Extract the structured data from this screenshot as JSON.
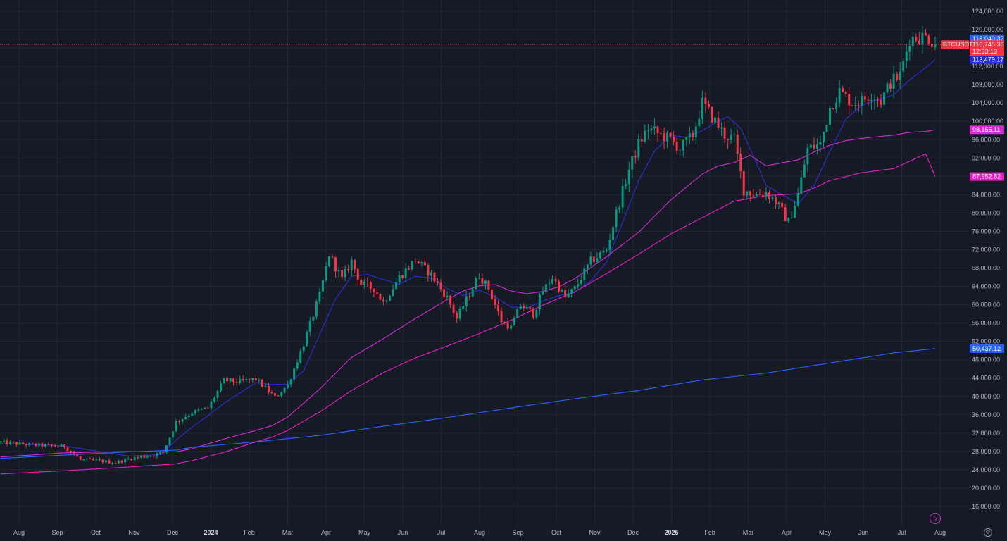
{
  "chart_data": {
    "type": "candlestick",
    "symbol": "BTCUSDT",
    "ylim": [
      12000,
      126000
    ],
    "y_ticks": [
      "124,000.00",
      "120,000.00",
      "116,000.00",
      "112,000.00",
      "108,000.00",
      "104,000.00",
      "100,000.00",
      "96,000.00",
      "92,000.00",
      "88,000.00",
      "84,000.00",
      "80,000.00",
      "76,000.00",
      "72,000.00",
      "68,000.00",
      "64,000.00",
      "60,000.00",
      "56,000.00",
      "52,000.00",
      "48,000.00",
      "44,000.00",
      "40,000.00",
      "36,000.00",
      "32,000.00",
      "28,000.00",
      "24,000.00",
      "20,000.00",
      "16,000.00"
    ],
    "x_ticks": [
      "Aug",
      "Sep",
      "Oct",
      "Nov",
      "Dec",
      "2024",
      "Feb",
      "Mar",
      "Apr",
      "May",
      "Jun",
      "Jul",
      "Aug",
      "Sep",
      "Oct",
      "Nov",
      "Dec",
      "2025",
      "Feb",
      "Mar",
      "Apr",
      "May",
      "Jun",
      "Jul",
      "Aug"
    ],
    "x_tick_bold": [
      "2024",
      "2025"
    ],
    "current_price": {
      "label": "BTCUSDT",
      "value": "116,745.36",
      "countdown": "12:33:13",
      "numeric": 116745.36,
      "color": "#f23645"
    },
    "price_labels": [
      {
        "value": "118,040.32",
        "numeric": 118040.32,
        "color": "#2962ff"
      },
      {
        "value": "113,479.17",
        "numeric": 113479.17,
        "color": "#2a2ed8"
      },
      {
        "value": "98,155.11",
        "numeric": 98155.11,
        "color": "#d62ad6"
      },
      {
        "value": "87,952.82",
        "numeric": 87952.82,
        "color": "#e91ec8"
      },
      {
        "value": "50,437.12",
        "numeric": 50437.12,
        "color": "#2962ff"
      }
    ],
    "price_anchors": [
      [
        0,
        30000
      ],
      [
        10,
        29400
      ],
      [
        20,
        29100
      ],
      [
        25,
        26200
      ],
      [
        30,
        26000
      ],
      [
        36,
        25600
      ],
      [
        41,
        26500
      ],
      [
        48,
        27200
      ],
      [
        51,
        27800
      ],
      [
        55,
        34400
      ],
      [
        60,
        36500
      ],
      [
        65,
        37500
      ],
      [
        70,
        43500
      ],
      [
        75,
        43200
      ],
      [
        80,
        43800
      ],
      [
        86,
        39800
      ],
      [
        90,
        42500
      ],
      [
        95,
        51500
      ],
      [
        100,
        62000
      ],
      [
        103,
        71000
      ],
      [
        107,
        65500
      ],
      [
        110,
        69500
      ],
      [
        113,
        64500
      ],
      [
        117,
        63500
      ],
      [
        120,
        60500
      ],
      [
        125,
        66000
      ],
      [
        130,
        69800
      ],
      [
        135,
        66500
      ],
      [
        140,
        61500
      ],
      [
        143,
        57000
      ],
      [
        147,
        62500
      ],
      [
        150,
        66500
      ],
      [
        153,
        63500
      ],
      [
        157,
        56500
      ],
      [
        160,
        55000
      ],
      [
        163,
        60000
      ],
      [
        167,
        58000
      ],
      [
        170,
        63000
      ],
      [
        173,
        66000
      ],
      [
        177,
        61500
      ],
      [
        180,
        63500
      ],
      [
        185,
        69500
      ],
      [
        190,
        72000
      ],
      [
        193,
        80000
      ],
      [
        197,
        89500
      ],
      [
        200,
        95000
      ],
      [
        203,
        98500
      ],
      [
        207,
        97000
      ],
      [
        210,
        96000
      ],
      [
        213,
        94000
      ],
      [
        217,
        97000
      ],
      [
        220,
        104000
      ],
      [
        223,
        101000
      ],
      [
        227,
        97000
      ],
      [
        230,
        96000
      ],
      [
        233,
        85000
      ],
      [
        237,
        84000
      ],
      [
        240,
        84500
      ],
      [
        243,
        82500
      ],
      [
        247,
        78000
      ],
      [
        250,
        84000
      ],
      [
        253,
        94000
      ],
      [
        257,
        95000
      ],
      [
        260,
        103000
      ],
      [
        263,
        106500
      ],
      [
        267,
        104000
      ],
      [
        270,
        104500
      ],
      [
        273,
        106000
      ],
      [
        276,
        104500
      ],
      [
        279,
        108500
      ],
      [
        282,
        110000
      ],
      [
        285,
        118000
      ],
      [
        288,
        118500
      ],
      [
        291,
        118200
      ],
      [
        293,
        116745
      ]
    ],
    "ma_anchors": {
      "ma20": [
        [
          0,
          29800
        ],
        [
          20,
          29200
        ],
        [
          30,
          28100
        ],
        [
          40,
          27000
        ],
        [
          50,
          27300
        ],
        [
          55,
          30500
        ],
        [
          60,
          33300
        ],
        [
          65,
          35800
        ],
        [
          70,
          38500
        ],
        [
          80,
          43000
        ],
        [
          85,
          42600
        ],
        [
          90,
          42700
        ],
        [
          95,
          45600
        ],
        [
          100,
          53500
        ],
        [
          105,
          61300
        ],
        [
          110,
          66200
        ],
        [
          115,
          66600
        ],
        [
          120,
          65500
        ],
        [
          125,
          64500
        ],
        [
          130,
          66200
        ],
        [
          135,
          65800
        ],
        [
          140,
          63500
        ],
        [
          145,
          62000
        ],
        [
          150,
          63200
        ],
        [
          155,
          61700
        ],
        [
          160,
          59500
        ],
        [
          165,
          59300
        ],
        [
          170,
          60800
        ],
        [
          175,
          62000
        ],
        [
          180,
          62700
        ],
        [
          185,
          65200
        ],
        [
          190,
          69300
        ],
        [
          195,
          78000
        ],
        [
          200,
          87000
        ],
        [
          205,
          93500
        ],
        [
          210,
          97000
        ],
        [
          215,
          96500
        ],
        [
          220,
          98000
        ],
        [
          225,
          100000
        ],
        [
          228,
          101000
        ],
        [
          232,
          98500
        ],
        [
          236,
          92500
        ],
        [
          240,
          86000
        ],
        [
          245,
          84000
        ],
        [
          250,
          82000
        ],
        [
          255,
          86000
        ],
        [
          260,
          93500
        ],
        [
          265,
          100500
        ],
        [
          270,
          103500
        ],
        [
          275,
          104700
        ],
        [
          280,
          105800
        ],
        [
          285,
          109000
        ],
        [
          290,
          111700
        ],
        [
          293,
          113479
        ]
      ],
      "ma50": [
        [
          0,
          26800
        ],
        [
          20,
          27700
        ],
        [
          40,
          28000
        ],
        [
          55,
          27900
        ],
        [
          60,
          28600
        ],
        [
          70,
          30700
        ],
        [
          80,
          32600
        ],
        [
          85,
          33600
        ],
        [
          90,
          35500
        ],
        [
          100,
          41600
        ],
        [
          110,
          48500
        ],
        [
          120,
          52600
        ],
        [
          130,
          57000
        ],
        [
          140,
          61100
        ],
        [
          145,
          63000
        ],
        [
          150,
          64100
        ],
        [
          155,
          64400
        ],
        [
          160,
          63000
        ],
        [
          165,
          62400
        ],
        [
          170,
          62900
        ],
        [
          175,
          63900
        ],
        [
          180,
          65700
        ],
        [
          190,
          70500
        ],
        [
          200,
          75800
        ],
        [
          210,
          82800
        ],
        [
          220,
          88500
        ],
        [
          225,
          90300
        ],
        [
          230,
          91000
        ],
        [
          235,
          92600
        ],
        [
          240,
          90300
        ],
        [
          250,
          91600
        ],
        [
          255,
          93300
        ],
        [
          260,
          94800
        ],
        [
          265,
          95800
        ],
        [
          270,
          96300
        ],
        [
          280,
          97000
        ],
        [
          285,
          97600
        ],
        [
          290,
          97800
        ],
        [
          293,
          98155
        ]
      ],
      "ma100": [
        [
          0,
          23100
        ],
        [
          20,
          23800
        ],
        [
          40,
          24600
        ],
        [
          55,
          25300
        ],
        [
          60,
          26000
        ],
        [
          70,
          27800
        ],
        [
          80,
          30100
        ],
        [
          85,
          31100
        ],
        [
          90,
          32600
        ],
        [
          100,
          36600
        ],
        [
          110,
          41300
        ],
        [
          120,
          45200
        ],
        [
          130,
          48400
        ],
        [
          140,
          51000
        ],
        [
          150,
          53700
        ],
        [
          160,
          56600
        ],
        [
          170,
          59900
        ],
        [
          180,
          62800
        ],
        [
          190,
          66800
        ],
        [
          200,
          71000
        ],
        [
          210,
          75400
        ],
        [
          220,
          79000
        ],
        [
          230,
          82600
        ],
        [
          240,
          83800
        ],
        [
          250,
          84200
        ],
        [
          255,
          85400
        ],
        [
          260,
          87100
        ],
        [
          270,
          88800
        ],
        [
          280,
          89700
        ],
        [
          285,
          91300
        ],
        [
          290,
          92900
        ],
        [
          293,
          87953
        ]
      ],
      "ma200": [
        [
          0,
          26500
        ],
        [
          20,
          27200
        ],
        [
          40,
          27900
        ],
        [
          55,
          28300
        ],
        [
          60,
          28900
        ],
        [
          80,
          30100
        ],
        [
          100,
          31500
        ],
        [
          120,
          33500
        ],
        [
          140,
          35400
        ],
        [
          160,
          37500
        ],
        [
          180,
          39500
        ],
        [
          200,
          41300
        ],
        [
          220,
          43600
        ],
        [
          240,
          45100
        ],
        [
          260,
          47300
        ],
        [
          280,
          49500
        ],
        [
          293,
          50437
        ]
      ]
    },
    "series": [
      {
        "name": "",
        "color": "#2a2ed8"
      },
      {
        "name": "",
        "color": "#d62ad6"
      },
      {
        "name": "",
        "color": "#e91ec8"
      },
      {
        "name": "",
        "color": "#2962ff"
      }
    ],
    "candle_colors": {
      "up": "#089981",
      "down": "#f23645"
    },
    "grid": true,
    "axis_position": "right",
    "background": "#161a25",
    "grid_color": "#232733"
  },
  "icons": {
    "bolt": "lightning-icon",
    "settings": "settings-icon"
  },
  "icon_glyphs": {
    "bolt": "ϟ",
    "settings": "⚙"
  }
}
